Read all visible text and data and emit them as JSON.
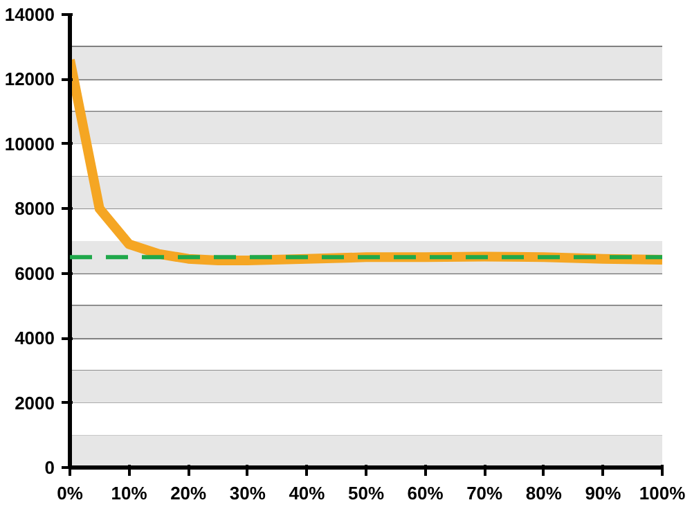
{
  "chart_data": {
    "type": "line",
    "x": [
      0,
      5,
      10,
      15,
      20,
      25,
      30,
      40,
      50,
      60,
      70,
      80,
      90,
      100
    ],
    "series": [
      {
        "color": "#f5a623",
        "values": [
          12600,
          8000,
          6900,
          6600,
          6450,
          6400,
          6400,
          6450,
          6500,
          6500,
          6520,
          6500,
          6450,
          6420
        ]
      }
    ],
    "xlim": [
      0,
      100
    ],
    "xticks": [
      {
        "value": 0,
        "label": "0%"
      },
      {
        "value": 10,
        "label": "10%"
      },
      {
        "value": 20,
        "label": "20%"
      },
      {
        "value": 30,
        "label": "30%"
      },
      {
        "value": 40,
        "label": "40%"
      },
      {
        "value": 50,
        "label": "50%"
      },
      {
        "value": 60,
        "label": "60%"
      },
      {
        "value": 70,
        "label": "70%"
      },
      {
        "value": 80,
        "label": "80%"
      },
      {
        "value": 90,
        "label": "90%"
      },
      {
        "value": 100,
        "label": "100%"
      }
    ],
    "ylim": [
      0,
      14000
    ],
    "yticks": [
      0,
      2000,
      4000,
      6000,
      8000,
      10000,
      12000,
      14000
    ],
    "ref_lines": [
      {
        "axis": "y",
        "value": 6500,
        "color": "#1fa84a",
        "line_style": "dashed"
      }
    ],
    "bands": [
      {
        "axis": "y",
        "from": 0,
        "to": 1000,
        "color": "#e6e6e6"
      },
      {
        "axis": "y",
        "from": 2000,
        "to": 3000,
        "color": "#e6e6e6"
      },
      {
        "axis": "y",
        "from": 4000,
        "to": 5000,
        "color": "#e6e6e6"
      },
      {
        "axis": "y",
        "from": 6000,
        "to": 7000,
        "color": "#e6e6e6"
      },
      {
        "axis": "y",
        "from": 8000,
        "to": 9000,
        "color": "#e6e6e6"
      },
      {
        "axis": "y",
        "from": 10000,
        "to": 11000,
        "color": "#e6e6e6"
      },
      {
        "axis": "y",
        "from": 12000,
        "to": 13000,
        "color": "#e6e6e6"
      }
    ],
    "grid": "y",
    "marker": "none",
    "line_style": "solid"
  }
}
